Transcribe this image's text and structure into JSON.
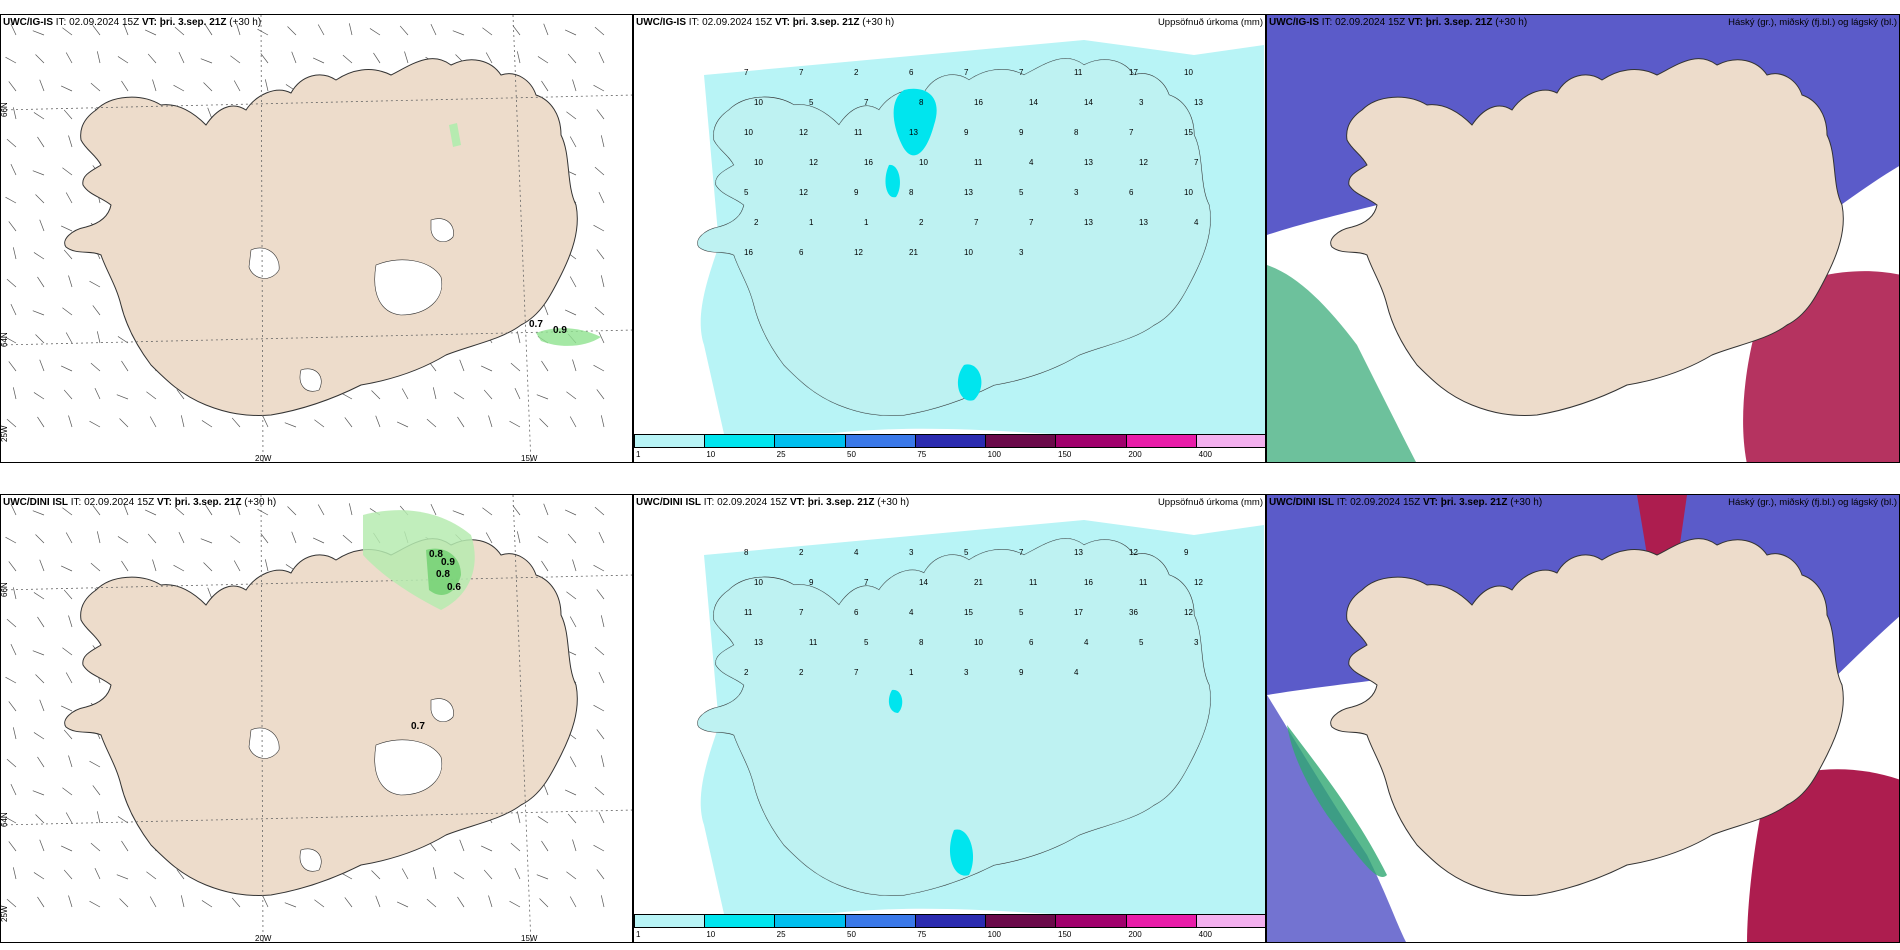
{
  "colors": {
    "land": "#eddccb",
    "sea_precip": "#b8f4f6",
    "precip_mid": "#00e5ee",
    "cloud_high": "#5b5bc9",
    "cloud_mid": "#ad1d4f",
    "cloud_low": "#2fa772",
    "coast": "#333333",
    "wind_green": "#8ee28e"
  },
  "rows": [
    {
      "model": "UWC/IG-IS",
      "it_label": "IT:",
      "it_value": "02.09.2024 15Z",
      "vt_label": "VT:",
      "vt_value": "þri. 3.sep. 21Z",
      "lead": "(+30 h)"
    },
    {
      "model": "UWC/DINI ISL",
      "it_label": "IT:",
      "it_value": "02.09.2024 15Z",
      "vt_label": "VT:",
      "vt_value": "þri. 3.sep. 21Z",
      "lead": "(+30 h)"
    }
  ],
  "precip_title": "Uppsöfnuð úrkoma (mm)",
  "cloud_title": "Háský (gr.), miðský (fj.bl.) og lágský (bl.)",
  "axis_labels": {
    "lat66": "66N",
    "lat64": "64N",
    "lon25": "25W",
    "lon20": "20W",
    "lon15": "15W"
  },
  "colorbar": {
    "ticks": [
      "1",
      "10",
      "25",
      "50",
      "75",
      "100",
      "150",
      "200",
      "400"
    ],
    "colors": [
      "#b8f4f6",
      "#00e5ee",
      "#00bfee",
      "#3a78e8",
      "#2b2bb0",
      "#6b0a4a",
      "#a0006c",
      "#e81ca8",
      "#f3b0ee"
    ]
  },
  "wind_labels_top": [
    "0.7",
    "0.9"
  ],
  "wind_labels_bottom": [
    "0.8",
    "0.9",
    "0.8",
    "0.6",
    "0.7"
  ],
  "precip_top": [
    "7",
    "7",
    "2",
    "6",
    "7",
    "7",
    "11",
    "17",
    "10",
    "10",
    "5",
    "7",
    "8",
    "16",
    "14",
    "14",
    "3",
    "13",
    "10",
    "12",
    "11",
    "13",
    "9",
    "9",
    "8",
    "7",
    "15",
    "10",
    "12",
    "16",
    "10",
    "11",
    "4",
    "13",
    "12",
    "7",
    "5",
    "12",
    "9",
    "8",
    "13",
    "5",
    "3",
    "6",
    "10",
    "2",
    "1",
    "1",
    "2",
    "7",
    "7",
    "13",
    "13",
    "4",
    "16",
    "6",
    "12",
    "21",
    "10",
    "3"
  ],
  "precip_bottom": [
    "8",
    "2",
    "4",
    "3",
    "5",
    "7",
    "13",
    "12",
    "9",
    "10",
    "9",
    "7",
    "14",
    "21",
    "11",
    "16",
    "11",
    "12",
    "11",
    "7",
    "6",
    "4",
    "15",
    "5",
    "17",
    "36",
    "12",
    "13",
    "11",
    "5",
    "8",
    "10",
    "6",
    "4",
    "5",
    "3",
    "2",
    "2",
    "7",
    "1",
    "3",
    "9",
    "4"
  ]
}
